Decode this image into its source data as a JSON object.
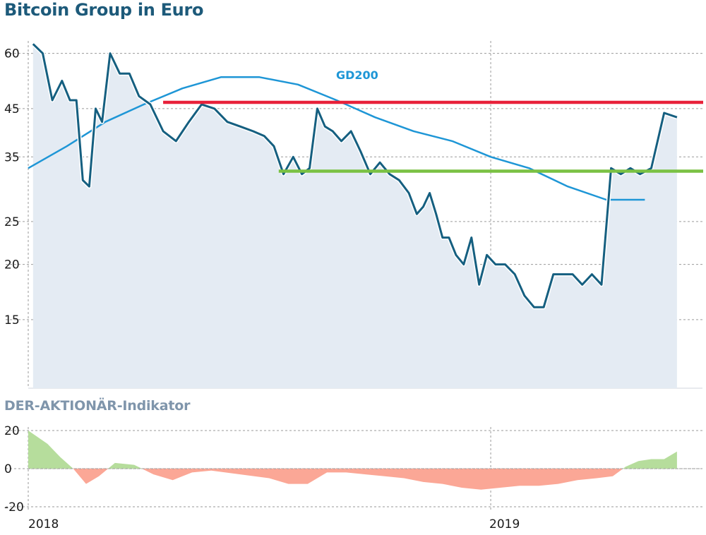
{
  "title": "Bitcoin Group in Euro",
  "colors": {
    "price_line": "#155f80",
    "area_fill": "#e4ebf3",
    "gd200": "#1e96d6",
    "resistance": "#e8213a",
    "support": "#7ac143",
    "indicator_positive": "#b6dd9c",
    "indicator_negative": "#fba796",
    "grid": "#9a9a9a"
  },
  "chart_data": [
    {
      "type": "line",
      "title": "Bitcoin Group in Euro",
      "y_scale": "log",
      "ylim": [
        10.5,
        64
      ],
      "y_ticks": [
        15,
        20,
        25,
        35,
        45,
        60
      ],
      "x_ticks": [
        "2018",
        "2019"
      ],
      "grid": true,
      "series": [
        {
          "name": "",
          "x": [
            "2018-01",
            "2018-01",
            "2018-01",
            "2018-01",
            "2018-02",
            "2018-02",
            "2018-02",
            "2018-02",
            "2018-02",
            "2018-02",
            "2018-03",
            "2018-03",
            "2018-03",
            "2018-03",
            "2018-04",
            "2018-04",
            "2018-04",
            "2018-05",
            "2018-05",
            "2018-05",
            "2018-06",
            "2018-06",
            "2018-06",
            "2018-07",
            "2018-07",
            "2018-07",
            "2018-07",
            "2018-08",
            "2018-08",
            "2018-08",
            "2018-08",
            "2018-08",
            "2018-09",
            "2018-09",
            "2018-09",
            "2018-09",
            "2018-10",
            "2018-10",
            "2018-10",
            "2018-10",
            "2018-11",
            "2018-11",
            "2018-11",
            "2018-11",
            "2018-11",
            "2018-11",
            "2018-12",
            "2018-12",
            "2018-12",
            "2018-12",
            "2018-12",
            "2019-01",
            "2019-01",
            "2019-01",
            "2019-01",
            "2019-02",
            "2019-02",
            "2019-02",
            "2019-02",
            "2019-03",
            "2019-03",
            "2019-03",
            "2019-03",
            "2019-04",
            "2019-04",
            "2019-04",
            "2019-04",
            "2019-05",
            "2019-05",
            "2019-05"
          ],
          "values": [
            63,
            60,
            47,
            52,
            47,
            47,
            31,
            30,
            45,
            42,
            60,
            54,
            54,
            48,
            46,
            40,
            38,
            42,
            46,
            45,
            42,
            41,
            40,
            39,
            37,
            32,
            35,
            32,
            33,
            45,
            41,
            40,
            38,
            40,
            36,
            32,
            34,
            32,
            31,
            29,
            26,
            27,
            29,
            26,
            23,
            23,
            21,
            20,
            23,
            18,
            21,
            20,
            20,
            19,
            17,
            16,
            16,
            19,
            19,
            19,
            18,
            19,
            18,
            33,
            32,
            33,
            32,
            33,
            44,
            43
          ]
        },
        {
          "name": "GD200",
          "x": [
            "2018-01",
            "2018-02",
            "2018-03",
            "2018-04",
            "2018-05",
            "2018-06",
            "2018-07",
            "2018-08",
            "2018-09",
            "2018-10",
            "2018-11",
            "2018-12",
            "2019-01",
            "2019-02",
            "2019-03",
            "2019-04",
            "2019-05"
          ],
          "values": [
            33,
            37,
            42,
            46,
            50,
            53,
            53,
            51,
            47,
            43,
            40,
            38,
            35,
            33,
            30,
            28,
            28
          ]
        }
      ],
      "annotations": [
        {
          "label": "GD200"
        },
        {
          "type": "horizontal_line",
          "role": "resistance",
          "value": 46.5,
          "from": "2018-04",
          "to": "2019-05"
        },
        {
          "type": "horizontal_line",
          "role": "support",
          "value": 32.5,
          "from": "2018-07",
          "to": "2019-05"
        }
      ]
    },
    {
      "type": "area",
      "title": "DER-AKTIONÄR-Indikator",
      "ylim": [
        -20,
        20
      ],
      "y_ticks": [
        20,
        0,
        -20
      ],
      "x_ticks": [
        "2018",
        "2019"
      ],
      "grid": true,
      "series": [
        {
          "name": "",
          "x": [
            "2018-01",
            "2018-01",
            "2018-01",
            "2018-02",
            "2018-02",
            "2018-02",
            "2018-03",
            "2018-03",
            "2018-04",
            "2018-04",
            "2018-05",
            "2018-05",
            "2018-06",
            "2018-07",
            "2018-07",
            "2018-08",
            "2018-08",
            "2018-09",
            "2018-09",
            "2018-10",
            "2018-10",
            "2018-11",
            "2018-11",
            "2018-12",
            "2018-12",
            "2019-01",
            "2019-01",
            "2019-02",
            "2019-02",
            "2019-03",
            "2019-03",
            "2019-04",
            "2019-04",
            "2019-04",
            "2019-05",
            "2019-05",
            "2019-05"
          ],
          "values": [
            20,
            13,
            6,
            0,
            -8,
            -4,
            3,
            2,
            -3,
            -6,
            -2,
            -1,
            -3,
            -5,
            -8,
            -8,
            -2,
            -2,
            -3,
            -4,
            -5,
            -7,
            -8,
            -10,
            -11,
            -10,
            -9,
            -9,
            -8,
            -6,
            -5,
            -4,
            1,
            4,
            5,
            5,
            9
          ]
        }
      ]
    }
  ]
}
